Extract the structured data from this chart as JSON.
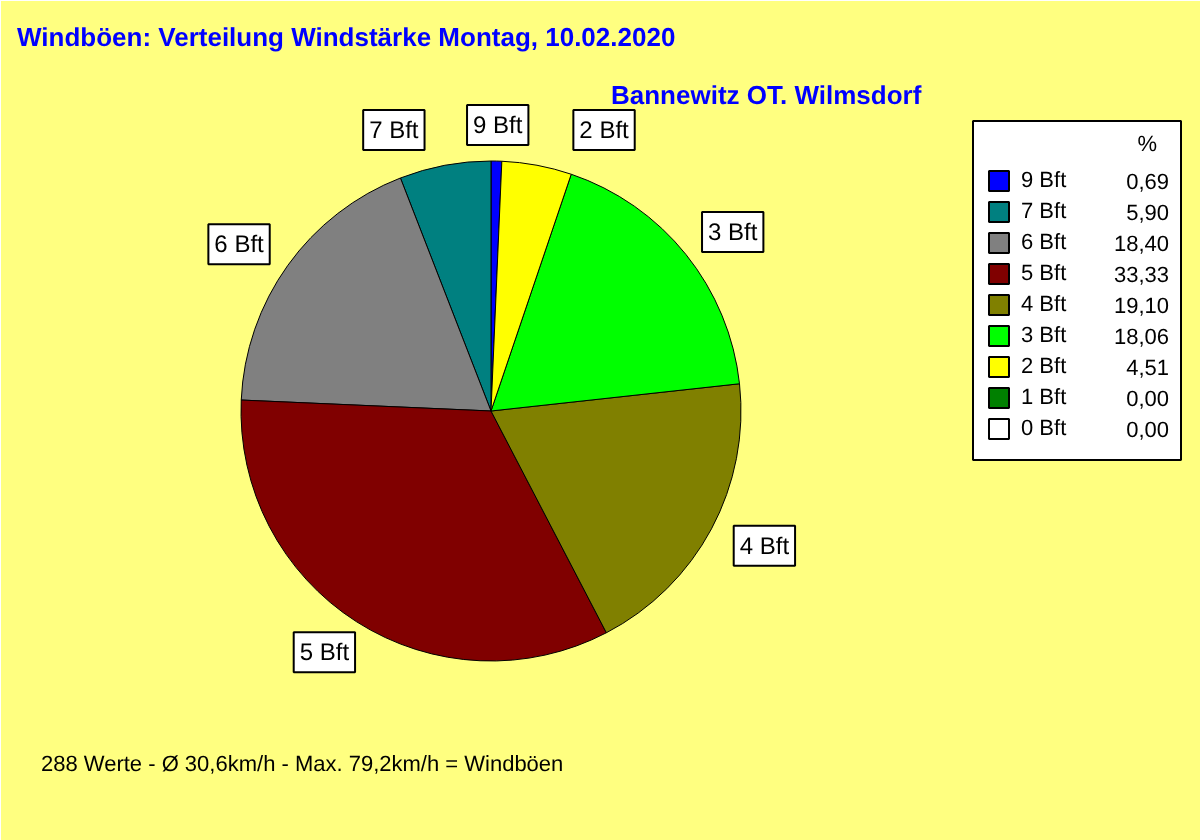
{
  "chart_data": {
    "type": "pie",
    "title": "Windböen: Verteilung Windstärke  Montag, 10.02.2020",
    "subtitle": "Bannewitz OT. Wilmsdorf",
    "legend_title": "%",
    "legend": "right",
    "categories": [
      "9 Bft",
      "7 Bft",
      "6 Bft",
      "5 Bft",
      "4 Bft",
      "3 Bft",
      "2 Bft",
      "1 Bft",
      "0 Bft"
    ],
    "values": [
      0.69,
      5.9,
      18.4,
      33.33,
      19.1,
      18.06,
      4.51,
      0.0,
      0.0
    ],
    "value_labels": [
      "0,69",
      "5,90",
      "18,40",
      "33,33",
      "19,10",
      "18,06",
      "4,51",
      "0,00",
      "0,00"
    ],
    "colors": [
      "#0000ff",
      "#008080",
      "#808080",
      "#800000",
      "#808000",
      "#00ff00",
      "#ffff00",
      "#008000",
      "#ffffff"
    ],
    "annotations": [
      "288 Werte   -   Ø 30,6km/h  -  Max. 79,2km/h = Windböen"
    ]
  }
}
